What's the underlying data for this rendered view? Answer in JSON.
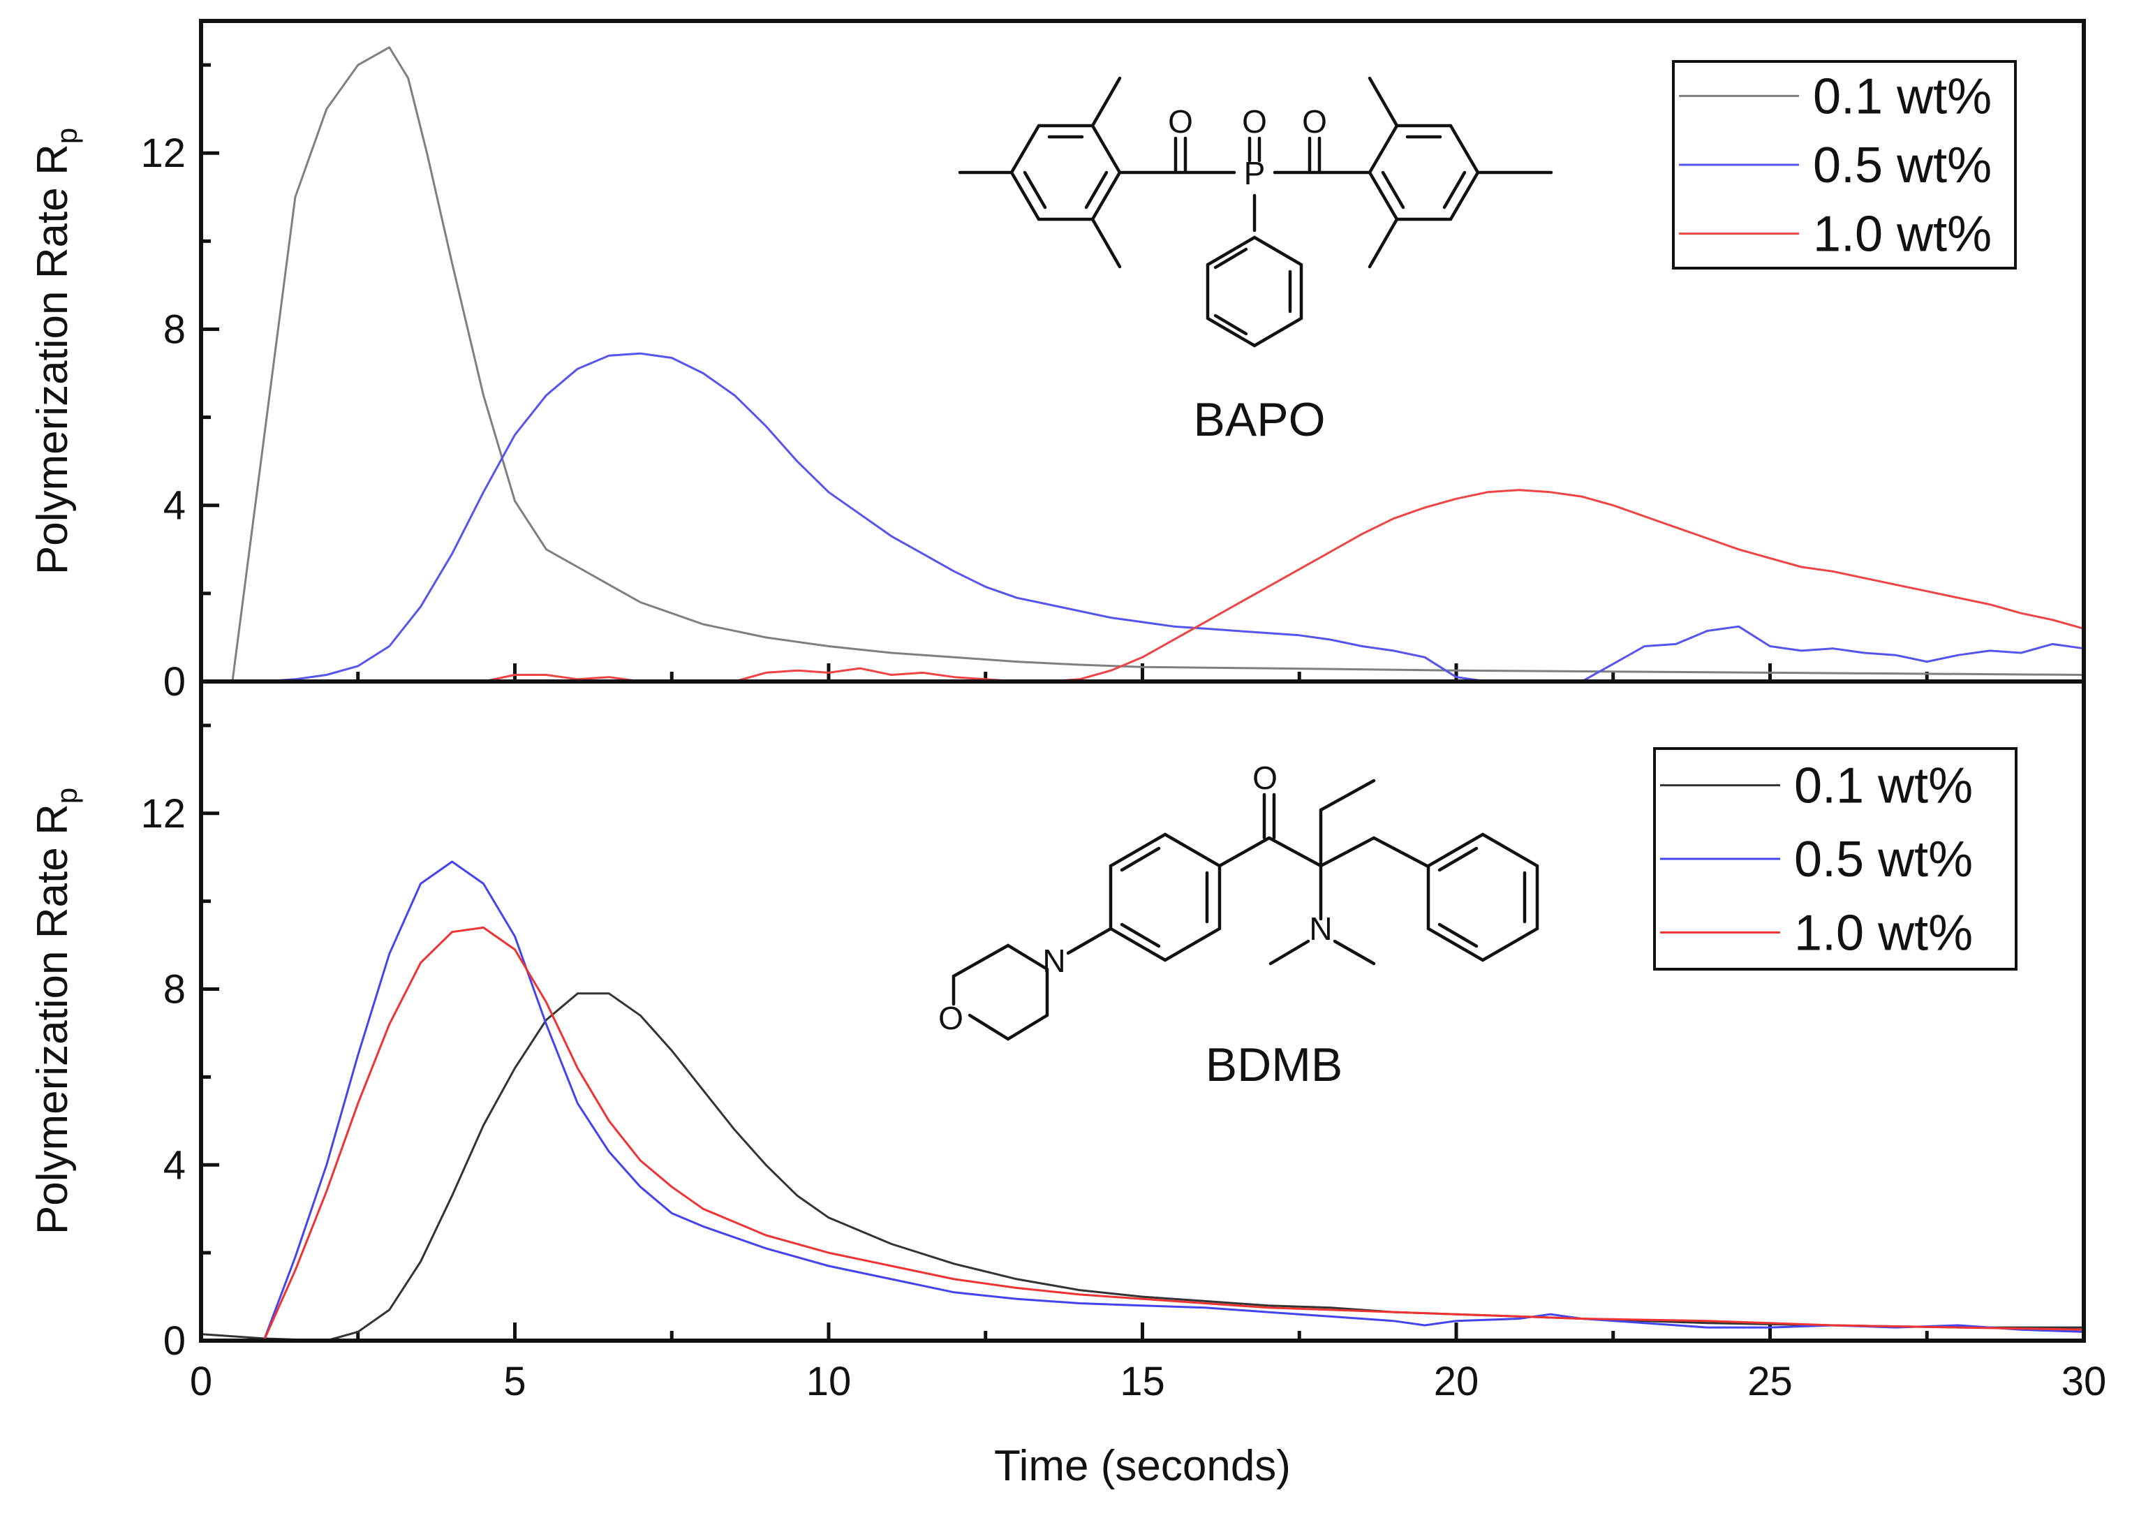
{
  "chart_data": [
    {
      "type": "line",
      "panel": "top",
      "compound": "BAPO",
      "ylabel": "Polymerization Rate R",
      "ylabel_sub": "p",
      "xlim": [
        0,
        30
      ],
      "ylim": [
        0,
        15
      ],
      "yticks": [
        0,
        4,
        8,
        12
      ],
      "legend_position": "top-right",
      "series": [
        {
          "name": "0.1 wt%",
          "color": "#7f7f7f",
          "x": [
            0,
            0.5,
            1,
            1.5,
            2,
            2.5,
            3,
            3.3,
            3.6,
            4,
            4.5,
            5,
            5.5,
            6,
            6.5,
            7,
            8,
            9,
            10,
            11,
            12,
            13,
            14,
            15,
            17,
            20,
            25,
            30
          ],
          "y": [
            0,
            0,
            5.5,
            11,
            13,
            14,
            14.4,
            13.7,
            12,
            9.5,
            6.5,
            4.1,
            3.0,
            2.6,
            2.2,
            1.8,
            1.3,
            1.0,
            0.8,
            0.65,
            0.55,
            0.45,
            0.38,
            0.33,
            0.3,
            0.25,
            0.2,
            0.15
          ]
        },
        {
          "name": "0.5 wt%",
          "color": "#5555ee",
          "x": [
            0,
            1,
            1.5,
            2,
            2.5,
            3,
            3.5,
            4,
            4.5,
            5,
            5.5,
            6,
            6.5,
            7,
            7.5,
            8,
            8.5,
            9,
            9.5,
            10,
            10.5,
            11,
            11.5,
            12,
            12.5,
            13,
            13.5,
            14,
            14.5,
            15,
            15.5,
            16,
            16.5,
            17,
            17.5,
            18,
            18.5,
            19,
            19.5,
            20,
            20.5,
            21,
            21.5,
            22,
            22.5,
            23,
            23.5,
            24,
            24.5,
            25,
            25.5,
            26,
            26.5,
            27,
            27.5,
            28,
            28.5,
            29,
            29.5,
            30
          ],
          "y": [
            0,
            0,
            0.05,
            0.15,
            0.35,
            0.8,
            1.7,
            2.9,
            4.3,
            5.6,
            6.5,
            7.1,
            7.4,
            7.45,
            7.35,
            7.0,
            6.5,
            5.8,
            5.0,
            4.3,
            3.8,
            3.3,
            2.9,
            2.5,
            2.15,
            1.9,
            1.75,
            1.6,
            1.45,
            1.35,
            1.25,
            1.2,
            1.15,
            1.1,
            1.05,
            0.95,
            0.8,
            0.7,
            0.55,
            0.1,
            0,
            0,
            0,
            0,
            0.4,
            0.8,
            0.85,
            1.15,
            1.25,
            0.8,
            0.7,
            0.75,
            0.65,
            0.6,
            0.45,
            0.6,
            0.7,
            0.65,
            0.85,
            0.75
          ]
        },
        {
          "name": "1.0 wt%",
          "color": "#ee4444",
          "x": [
            0,
            4.5,
            5,
            5.5,
            6,
            6.5,
            7,
            8.5,
            9,
            9.5,
            10,
            10.5,
            11,
            11.5,
            12,
            12.5,
            13,
            13.5,
            14,
            14.5,
            15,
            15.5,
            16,
            16.5,
            17,
            17.5,
            18,
            18.5,
            19,
            19.5,
            20,
            20.5,
            21,
            21.5,
            22,
            22.5,
            23,
            23.5,
            24,
            24.5,
            25,
            25.5,
            26,
            26.5,
            27,
            27.5,
            28,
            28.5,
            29,
            29.5,
            30
          ],
          "y": [
            0,
            0,
            0.15,
            0.15,
            0.05,
            0.1,
            0,
            0,
            0.2,
            0.25,
            0.2,
            0.3,
            0.15,
            0.2,
            0.1,
            0.05,
            0,
            0,
            0.05,
            0.25,
            0.55,
            0.95,
            1.35,
            1.75,
            2.15,
            2.55,
            2.95,
            3.35,
            3.7,
            3.95,
            4.15,
            4.3,
            4.35,
            4.3,
            4.2,
            4.0,
            3.75,
            3.5,
            3.25,
            3.0,
            2.8,
            2.6,
            2.5,
            2.35,
            2.2,
            2.05,
            1.9,
            1.75,
            1.55,
            1.4,
            1.2
          ]
        }
      ]
    },
    {
      "type": "line",
      "panel": "bottom",
      "compound": "BDMB",
      "ylabel": "Polymerization Rate R",
      "ylabel_sub": "p",
      "xlabel": "Time (seconds)",
      "xlim": [
        0,
        30
      ],
      "ylim": [
        0,
        15
      ],
      "yticks": [
        0,
        4,
        8,
        12
      ],
      "xticks": [
        0,
        5,
        10,
        15,
        20,
        25,
        30
      ],
      "legend_position": "top-right",
      "series": [
        {
          "name": "0.1 wt%",
          "color": "#333333",
          "x": [
            0,
            1,
            2,
            2.5,
            3,
            3.5,
            4,
            4.5,
            5,
            5.5,
            6,
            6.5,
            7,
            7.5,
            8,
            8.5,
            9,
            9.5,
            10,
            11,
            12,
            13,
            14,
            15,
            16,
            17,
            18,
            19,
            20,
            22,
            24,
            26,
            28,
            30
          ],
          "y": [
            0.15,
            0.05,
            0,
            0.2,
            0.7,
            1.8,
            3.3,
            4.9,
            6.2,
            7.3,
            7.9,
            7.9,
            7.4,
            6.6,
            5.7,
            4.8,
            4.0,
            3.3,
            2.8,
            2.2,
            1.75,
            1.4,
            1.15,
            1.0,
            0.9,
            0.8,
            0.75,
            0.65,
            0.6,
            0.5,
            0.4,
            0.35,
            0.3,
            0.3
          ]
        },
        {
          "name": "0.5 wt%",
          "color": "#4444ee",
          "x": [
            0,
            1,
            1.5,
            2,
            2.5,
            3,
            3.5,
            4,
            4.5,
            5,
            5.5,
            6,
            6.5,
            7,
            7.5,
            8,
            9,
            10,
            11,
            12,
            13,
            14,
            15,
            16,
            17,
            18,
            19,
            19.5,
            20,
            21,
            21.5,
            22,
            23,
            24,
            25,
            26,
            27,
            28,
            29,
            30
          ],
          "y": [
            0,
            0,
            1.9,
            4.0,
            6.5,
            8.8,
            10.4,
            10.9,
            10.4,
            9.2,
            7.2,
            5.4,
            4.3,
            3.5,
            2.9,
            2.6,
            2.1,
            1.7,
            1.4,
            1.1,
            0.95,
            0.85,
            0.8,
            0.75,
            0.65,
            0.55,
            0.45,
            0.35,
            0.45,
            0.5,
            0.6,
            0.5,
            0.4,
            0.3,
            0.3,
            0.35,
            0.3,
            0.35,
            0.25,
            0.2
          ]
        },
        {
          "name": "1.0 wt%",
          "color": "#ee3333",
          "x": [
            0,
            1,
            1.5,
            2,
            2.5,
            3,
            3.5,
            4,
            4.5,
            5,
            5.5,
            6,
            6.5,
            7,
            7.5,
            8,
            8.5,
            9,
            10,
            11,
            12,
            13,
            14,
            15,
            16,
            17,
            18,
            20,
            22,
            24,
            26,
            28,
            30
          ],
          "y": [
            0,
            0,
            1.6,
            3.4,
            5.4,
            7.2,
            8.6,
            9.3,
            9.4,
            8.9,
            7.7,
            6.2,
            5.0,
            4.1,
            3.5,
            3.0,
            2.7,
            2.4,
            2.0,
            1.7,
            1.4,
            1.2,
            1.05,
            0.95,
            0.85,
            0.75,
            0.7,
            0.6,
            0.5,
            0.45,
            0.35,
            0.3,
            0.25
          ]
        }
      ]
    }
  ]
}
